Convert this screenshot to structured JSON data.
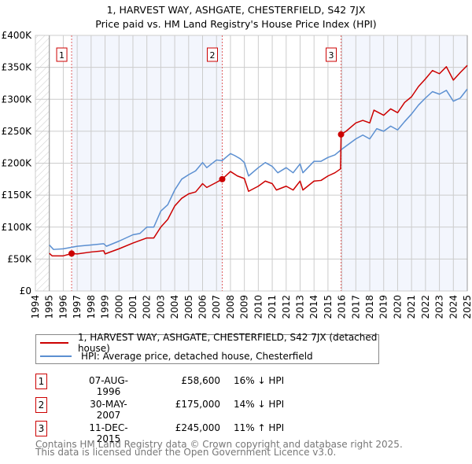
{
  "chart_data": {
    "type": "line",
    "title": "1, HARVEST WAY, ASHGATE, CHESTERFIELD, S42 7JX",
    "subtitle": "Price paid vs. HM Land Registry's House Price Index (HPI)",
    "xlim": [
      1994,
      2025
    ],
    "ylim": [
      0,
      400000
    ],
    "y_ticks": [
      {
        "v": 0,
        "label": "£0"
      },
      {
        "v": 50000,
        "label": "£50K"
      },
      {
        "v": 100000,
        "label": "£100K"
      },
      {
        "v": 150000,
        "label": "£150K"
      },
      {
        "v": 200000,
        "label": "£200K"
      },
      {
        "v": 250000,
        "label": "£250K"
      },
      {
        "v": 300000,
        "label": "£300K"
      },
      {
        "v": 350000,
        "label": "£350K"
      },
      {
        "v": 400000,
        "label": "£400K"
      }
    ],
    "x_ticks": [
      "1994",
      "1995",
      "1996",
      "1997",
      "1998",
      "1999",
      "2000",
      "2001",
      "2002",
      "2003",
      "2004",
      "2005",
      "2006",
      "2007",
      "2008",
      "2009",
      "2010",
      "2011",
      "2012",
      "2013",
      "2014",
      "2015",
      "2016",
      "2017",
      "2018",
      "2019",
      "2020",
      "2021",
      "2022",
      "2023",
      "2024",
      "2025"
    ],
    "grid": true,
    "series": [
      {
        "name": "1, HARVEST WAY, ASHGATE, CHESTERFIELD, S42 7JX (detached house)",
        "color": "#cc0000",
        "points": [
          [
            1995.0,
            59000
          ],
          [
            1995.2,
            55000
          ],
          [
            1996.0,
            55000
          ],
          [
            1996.6,
            58600
          ],
          [
            1997.0,
            58000
          ],
          [
            1998.0,
            61000
          ],
          [
            1998.9,
            63000
          ],
          [
            1999.0,
            58000
          ],
          [
            2000.0,
            66000
          ],
          [
            2001.0,
            75000
          ],
          [
            2002.0,
            83000
          ],
          [
            2002.5,
            83000
          ],
          [
            2003.0,
            100000
          ],
          [
            2003.5,
            112000
          ],
          [
            2004.0,
            133000
          ],
          [
            2004.5,
            145000
          ],
          [
            2005.0,
            152000
          ],
          [
            2005.5,
            155000
          ],
          [
            2006.0,
            168000
          ],
          [
            2006.3,
            162000
          ],
          [
            2007.0,
            170000
          ],
          [
            2007.41,
            175000
          ],
          [
            2008.0,
            187000
          ],
          [
            2008.5,
            180000
          ],
          [
            2009.0,
            176000
          ],
          [
            2009.3,
            156000
          ],
          [
            2010.0,
            164000
          ],
          [
            2010.5,
            172000
          ],
          [
            2011.0,
            168000
          ],
          [
            2011.3,
            158000
          ],
          [
            2012.0,
            164000
          ],
          [
            2012.5,
            158000
          ],
          [
            2013.0,
            172000
          ],
          [
            2013.2,
            158000
          ],
          [
            2014.0,
            172000
          ],
          [
            2014.5,
            173000
          ],
          [
            2015.0,
            180000
          ],
          [
            2015.5,
            185000
          ],
          [
            2015.9,
            191000
          ],
          [
            2015.94,
            245000
          ],
          [
            2016.3,
            250000
          ],
          [
            2017.0,
            263000
          ],
          [
            2017.5,
            267000
          ],
          [
            2018.0,
            263000
          ],
          [
            2018.3,
            283000
          ],
          [
            2019.0,
            275000
          ],
          [
            2019.5,
            285000
          ],
          [
            2020.0,
            279000
          ],
          [
            2020.5,
            295000
          ],
          [
            2021.0,
            304000
          ],
          [
            2021.5,
            320000
          ],
          [
            2022.0,
            332000
          ],
          [
            2022.5,
            345000
          ],
          [
            2023.0,
            340000
          ],
          [
            2023.5,
            351000
          ],
          [
            2024.0,
            330000
          ],
          [
            2024.5,
            342000
          ],
          [
            2025.0,
            353000
          ]
        ]
      },
      {
        "name": "HPI: Average price, detached house, Chesterfield",
        "color": "#5b8fd1",
        "points": [
          [
            1995.0,
            72000
          ],
          [
            1995.3,
            65000
          ],
          [
            1996.0,
            66000
          ],
          [
            1997.0,
            70000
          ],
          [
            1998.0,
            72000
          ],
          [
            1998.9,
            74000
          ],
          [
            1999.1,
            70000
          ],
          [
            2000.0,
            78000
          ],
          [
            2001.0,
            88000
          ],
          [
            2001.5,
            90000
          ],
          [
            2002.0,
            100000
          ],
          [
            2002.5,
            100000
          ],
          [
            2003.0,
            125000
          ],
          [
            2003.5,
            135000
          ],
          [
            2004.0,
            158000
          ],
          [
            2004.5,
            175000
          ],
          [
            2005.0,
            182000
          ],
          [
            2005.5,
            188000
          ],
          [
            2006.0,
            201000
          ],
          [
            2006.3,
            193000
          ],
          [
            2007.0,
            205000
          ],
          [
            2007.4,
            204000
          ],
          [
            2008.0,
            215000
          ],
          [
            2008.3,
            212000
          ],
          [
            2008.7,
            207000
          ],
          [
            2009.0,
            201000
          ],
          [
            2009.3,
            180000
          ],
          [
            2010.0,
            193000
          ],
          [
            2010.5,
            201000
          ],
          [
            2011.0,
            195000
          ],
          [
            2011.4,
            185000
          ],
          [
            2012.0,
            193000
          ],
          [
            2012.5,
            185000
          ],
          [
            2013.0,
            199000
          ],
          [
            2013.2,
            185000
          ],
          [
            2014.0,
            203000
          ],
          [
            2014.5,
            203000
          ],
          [
            2015.0,
            209000
          ],
          [
            2015.5,
            213000
          ],
          [
            2016.0,
            222000
          ],
          [
            2016.5,
            230000
          ],
          [
            2017.0,
            238000
          ],
          [
            2017.5,
            244000
          ],
          [
            2018.0,
            238000
          ],
          [
            2018.5,
            254000
          ],
          [
            2019.0,
            250000
          ],
          [
            2019.5,
            258000
          ],
          [
            2020.0,
            252000
          ],
          [
            2020.5,
            265000
          ],
          [
            2021.0,
            277000
          ],
          [
            2021.5,
            291000
          ],
          [
            2022.0,
            302000
          ],
          [
            2022.5,
            312000
          ],
          [
            2023.0,
            308000
          ],
          [
            2023.5,
            314000
          ],
          [
            2024.0,
            297000
          ],
          [
            2024.5,
            302000
          ],
          [
            2025.0,
            316000
          ]
        ]
      }
    ],
    "sales": [
      {
        "n": "1",
        "x": 1996.6,
        "price": 58600
      },
      {
        "n": "2",
        "x": 2007.41,
        "price": 175000
      },
      {
        "n": "3",
        "x": 2015.94,
        "price": 245000
      }
    ]
  },
  "legend": {
    "red_label": "1, HARVEST WAY, ASHGATE, CHESTERFIELD, S42 7JX (detached house)",
    "blue_label": "HPI: Average price, detached house, Chesterfield"
  },
  "transactions": [
    {
      "n": "1",
      "date": "07-AUG-1996",
      "price": "£58,600",
      "hpi": "16% ↓ HPI"
    },
    {
      "n": "2",
      "date": "30-MAY-2007",
      "price": "£175,000",
      "hpi": "14% ↓ HPI"
    },
    {
      "n": "3",
      "date": "11-DEC-2015",
      "price": "£245,000",
      "hpi": "11% ↑ HPI"
    }
  ],
  "footer": {
    "line1": "Contains HM Land Registry data © Crown copyright and database right 2025.",
    "line2": "This data is licensed under the Open Government Licence v3.0."
  }
}
